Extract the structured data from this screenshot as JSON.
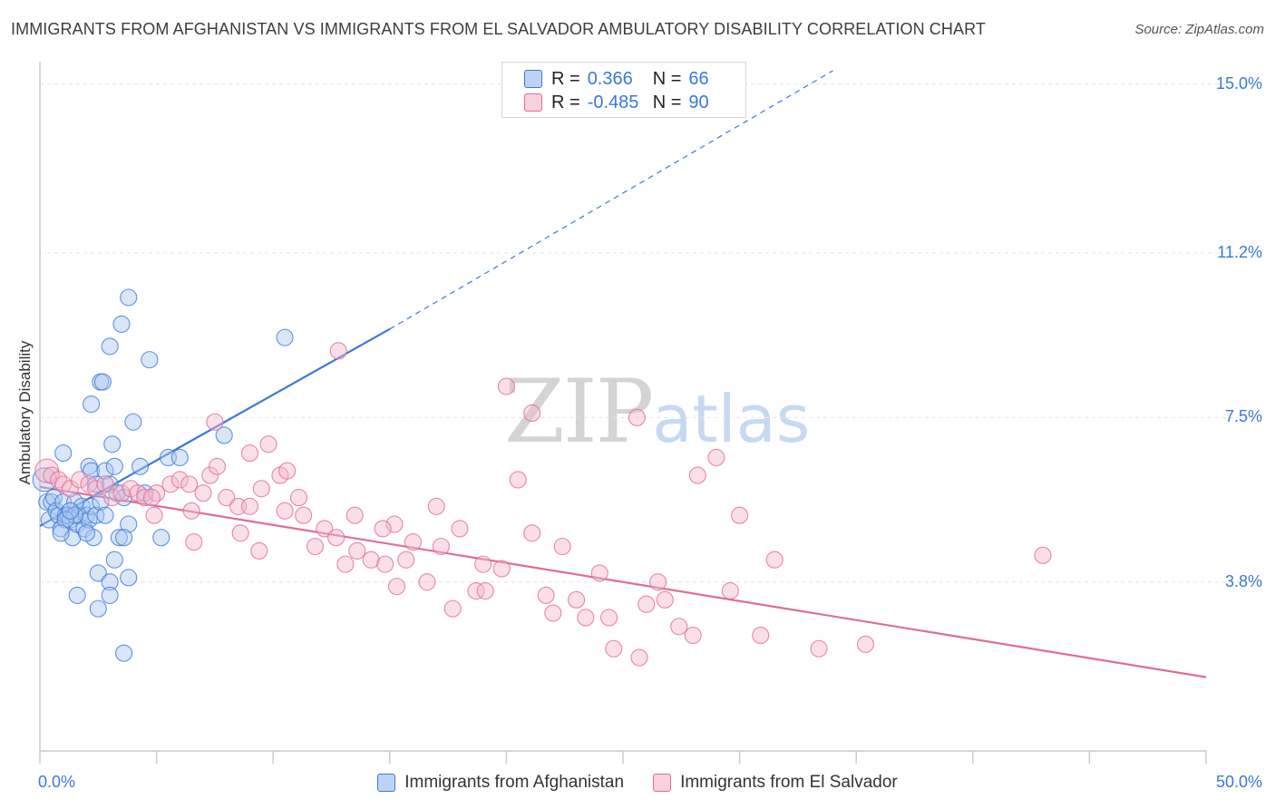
{
  "title": "IMMIGRANTS FROM AFGHANISTAN VS IMMIGRANTS FROM EL SALVADOR AMBULATORY DISABILITY CORRELATION CHART",
  "source": "Source: ZipAtlas.com",
  "watermark": {
    "zip": "ZIP",
    "atlas": "atlas"
  },
  "legend": {
    "rows": [
      {
        "r_label": "R =",
        "r_value": "0.366",
        "n_label": "N =",
        "n_value": "66"
      },
      {
        "r_label": "R =",
        "r_value": "-0.485",
        "n_label": "N =",
        "n_value": "90"
      }
    ]
  },
  "colors": {
    "blue": "#3b78d8",
    "blue_fill": "#a9c8f0",
    "pink": "#e06c98",
    "pink_fill": "#f4b8cc",
    "grid": "#e4e4e4",
    "tick_text": "#3b78d8"
  },
  "chart_data": {
    "type": "scatter",
    "title": "IMMIGRANTS FROM AFGHANISTAN VS IMMIGRANTS FROM EL SALVADOR AMBULATORY DISABILITY CORRELATION CHART",
    "xlabel": "",
    "ylabel": "Ambulatory Disability",
    "xlim": [
      0,
      50
    ],
    "ylim": [
      0,
      15.3
    ],
    "x_tick_labels": [
      "0.0%",
      "50.0%"
    ],
    "y_ticks": [
      3.8,
      7.5,
      11.2,
      15.0
    ],
    "y_tick_labels": [
      "3.8%",
      "7.5%",
      "11.2%",
      "15.0%"
    ],
    "grid": true,
    "legend_position": "top-center",
    "series": [
      {
        "name": "Immigrants from Afghanistan",
        "color": "#3b78d8",
        "trend": {
          "x0": 0,
          "y0": 5.06,
          "x1": 15,
          "y1": 9.49,
          "dashed_to_x": 34,
          "dashed_to_y": 15.3
        },
        "points": [
          [
            0.2,
            6.1
          ],
          [
            0.3,
            5.6
          ],
          [
            0.4,
            5.2
          ],
          [
            0.5,
            5.6
          ],
          [
            0.6,
            5.7
          ],
          [
            0.7,
            5.4
          ],
          [
            0.8,
            5.3
          ],
          [
            0.9,
            5.0
          ],
          [
            1.0,
            5.6
          ],
          [
            1.1,
            5.3
          ],
          [
            1.2,
            5.3
          ],
          [
            1.3,
            5.2
          ],
          [
            1.4,
            4.8
          ],
          [
            1.5,
            5.6
          ],
          [
            1.6,
            5.1
          ],
          [
            1.7,
            5.3
          ],
          [
            1.8,
            5.5
          ],
          [
            1.9,
            5.0
          ],
          [
            2.0,
            5.3
          ],
          [
            2.1,
            5.2
          ],
          [
            2.2,
            5.5
          ],
          [
            2.3,
            4.8
          ],
          [
            2.4,
            5.3
          ],
          [
            2.6,
            5.6
          ],
          [
            2.8,
            5.3
          ],
          [
            1.0,
            6.7
          ],
          [
            2.1,
            6.4
          ],
          [
            2.2,
            6.3
          ],
          [
            2.8,
            6.3
          ],
          [
            2.4,
            6.0
          ],
          [
            3.0,
            6.0
          ],
          [
            3.3,
            5.8
          ],
          [
            3.6,
            5.7
          ],
          [
            2.2,
            7.8
          ],
          [
            2.6,
            8.3
          ],
          [
            3.1,
            6.9
          ],
          [
            3.2,
            6.4
          ],
          [
            4.3,
            6.4
          ],
          [
            4.0,
            7.4
          ],
          [
            5.5,
            6.6
          ],
          [
            6.0,
            6.6
          ],
          [
            7.9,
            7.1
          ],
          [
            3.0,
            9.1
          ],
          [
            3.5,
            9.6
          ],
          [
            3.8,
            10.2
          ],
          [
            4.7,
            8.8
          ],
          [
            2.7,
            8.3
          ],
          [
            10.5,
            9.3
          ],
          [
            4.5,
            5.8
          ],
          [
            5.2,
            4.8
          ],
          [
            3.8,
            5.1
          ],
          [
            3.4,
            4.8
          ],
          [
            3.6,
            4.8
          ],
          [
            3.2,
            4.3
          ],
          [
            2.5,
            4.0
          ],
          [
            3.8,
            3.9
          ],
          [
            3.0,
            3.8
          ],
          [
            1.6,
            3.5
          ],
          [
            3.0,
            3.5
          ],
          [
            2.5,
            3.2
          ],
          [
            3.6,
            2.2
          ],
          [
            1.5,
            5.3
          ],
          [
            1.1,
            5.2
          ],
          [
            0.9,
            4.9
          ],
          [
            1.3,
            5.4
          ],
          [
            2.0,
            4.9
          ]
        ]
      },
      {
        "name": "Immigrants from El Salvador",
        "color": "#e06c98",
        "trend": {
          "x0": 0,
          "y0": 5.94,
          "x1": 50,
          "y1": 1.66
        },
        "points": [
          [
            0.3,
            6.3
          ],
          [
            0.5,
            6.2
          ],
          [
            0.8,
            6.1
          ],
          [
            1.0,
            6.0
          ],
          [
            1.3,
            5.9
          ],
          [
            1.7,
            6.1
          ],
          [
            2.1,
            6.0
          ],
          [
            2.4,
            5.9
          ],
          [
            2.8,
            6.0
          ],
          [
            3.1,
            5.7
          ],
          [
            3.5,
            5.8
          ],
          [
            3.9,
            5.9
          ],
          [
            4.2,
            5.8
          ],
          [
            4.5,
            5.7
          ],
          [
            5.0,
            5.8
          ],
          [
            5.6,
            6.0
          ],
          [
            6.0,
            6.1
          ],
          [
            6.4,
            6.0
          ],
          [
            7.0,
            5.8
          ],
          [
            7.3,
            6.2
          ],
          [
            7.6,
            6.4
          ],
          [
            8.0,
            5.7
          ],
          [
            8.5,
            5.5
          ],
          [
            9.0,
            6.7
          ],
          [
            9.5,
            5.9
          ],
          [
            9.8,
            6.9
          ],
          [
            10.3,
            6.2
          ],
          [
            10.6,
            6.3
          ],
          [
            11.3,
            5.3
          ],
          [
            12.2,
            5.0
          ],
          [
            12.7,
            4.8
          ],
          [
            13.1,
            4.2
          ],
          [
            13.6,
            4.5
          ],
          [
            14.2,
            4.3
          ],
          [
            14.8,
            4.2
          ],
          [
            15.2,
            5.1
          ],
          [
            15.7,
            4.3
          ],
          [
            16.6,
            3.8
          ],
          [
            17.0,
            5.5
          ],
          [
            17.2,
            4.6
          ],
          [
            17.7,
            3.2
          ],
          [
            18.7,
            3.6
          ],
          [
            19.1,
            3.6
          ],
          [
            19.8,
            4.1
          ],
          [
            20.5,
            6.1
          ],
          [
            21.1,
            4.9
          ],
          [
            21.7,
            3.5
          ],
          [
            22.4,
            4.6
          ],
          [
            23.0,
            3.4
          ],
          [
            23.4,
            3.0
          ],
          [
            24.4,
            3.0
          ],
          [
            24.6,
            2.3
          ],
          [
            25.7,
            2.1
          ],
          [
            26.5,
            3.8
          ],
          [
            26.8,
            3.4
          ],
          [
            27.4,
            2.8
          ],
          [
            28.2,
            6.2
          ],
          [
            29.0,
            6.6
          ],
          [
            29.6,
            3.6
          ],
          [
            30.9,
            2.6
          ],
          [
            31.5,
            4.3
          ],
          [
            33.4,
            2.3
          ],
          [
            35.4,
            2.4
          ],
          [
            43.0,
            4.4
          ],
          [
            20.0,
            8.2
          ],
          [
            21.1,
            7.6
          ],
          [
            25.6,
            7.5
          ],
          [
            12.8,
            9.0
          ],
          [
            11.1,
            5.7
          ],
          [
            7.5,
            7.4
          ],
          [
            4.8,
            5.7
          ],
          [
            4.9,
            5.3
          ],
          [
            6.5,
            5.4
          ],
          [
            8.6,
            4.9
          ],
          [
            9.4,
            4.5
          ],
          [
            10.5,
            5.4
          ],
          [
            13.5,
            5.3
          ],
          [
            14.7,
            5.0
          ],
          [
            16.0,
            4.7
          ],
          [
            18.0,
            5.0
          ],
          [
            19.0,
            4.2
          ],
          [
            22.0,
            3.1
          ],
          [
            24.0,
            4.0
          ],
          [
            26.0,
            3.3
          ],
          [
            28.0,
            2.6
          ],
          [
            30.0,
            5.3
          ],
          [
            9.0,
            5.5
          ],
          [
            11.8,
            4.6
          ],
          [
            15.3,
            3.7
          ],
          [
            6.6,
            4.7
          ]
        ]
      }
    ]
  },
  "bottom_legend": [
    {
      "label": "Immigrants from Afghanistan"
    },
    {
      "label": "Immigrants from El Salvador"
    }
  ]
}
